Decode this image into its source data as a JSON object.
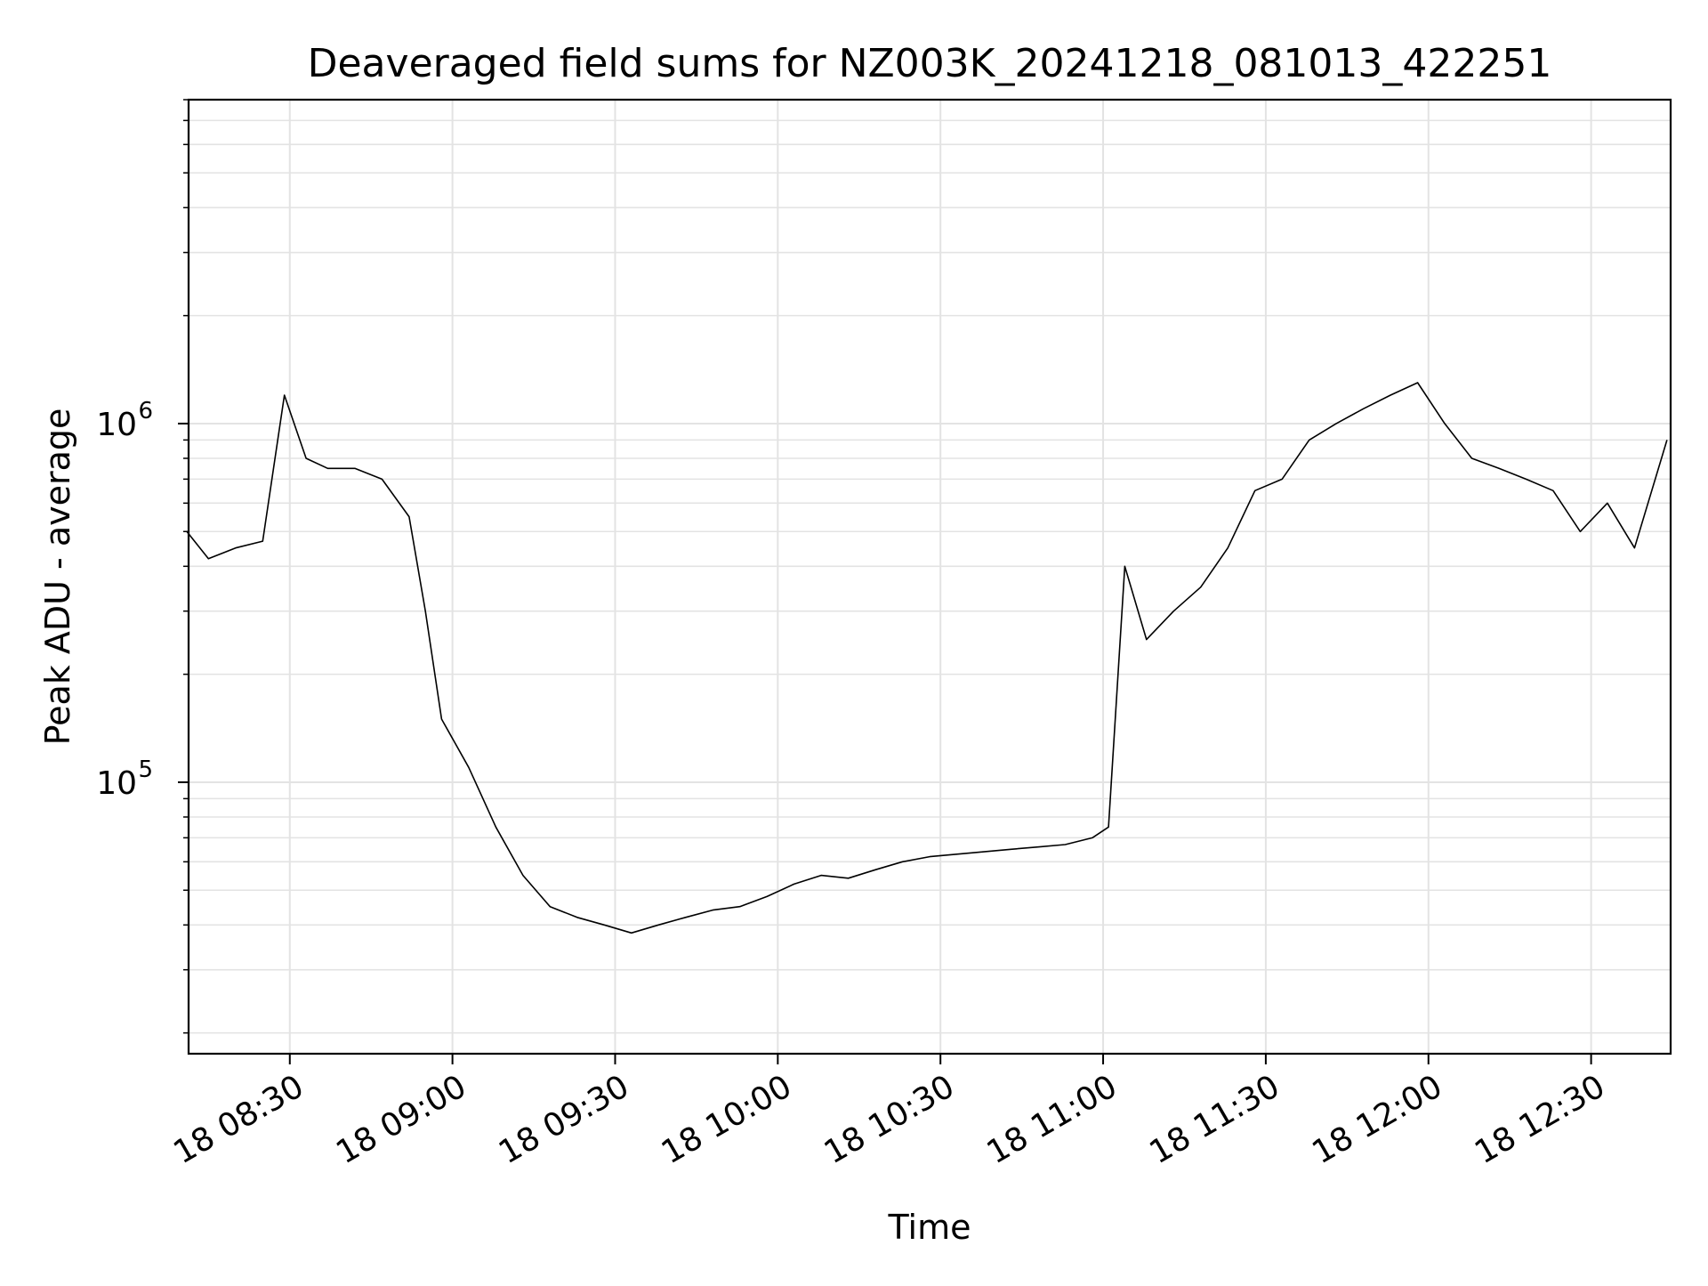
{
  "chart_data": {
    "type": "line",
    "title": "Deaveraged field sums for NZ003K_20241218_081013_422251",
    "xlabel": "Time",
    "ylabel": "Peak ADU - average",
    "yscale": "log",
    "ylim": [
      17500,
      8000000
    ],
    "xlim": [
      "18 08:11:20",
      "18 12:44:40"
    ],
    "grid": true,
    "line_color": "#000000",
    "x_ticks": [
      "18 08:30",
      "18 09:00",
      "18 09:30",
      "18 10:00",
      "18 10:30",
      "18 11:00",
      "18 11:30",
      "18 12:00",
      "18 12:30"
    ],
    "y_ticks": [
      {
        "base": "10",
        "exp": "5",
        "value": 100000
      },
      {
        "base": "10",
        "exp": "6",
        "value": 1000000
      }
    ],
    "series": [
      {
        "x": [
          "08:11",
          "08:15",
          "08:20",
          "08:25",
          "08:29",
          "08:33",
          "08:37",
          "08:42",
          "08:47",
          "08:52",
          "08:55",
          "08:58",
          "09:03",
          "09:08",
          "09:13",
          "09:18",
          "09:23",
          "09:28",
          "09:33",
          "09:38",
          "09:43",
          "09:48",
          "09:53",
          "09:58",
          "10:03",
          "10:08",
          "10:13",
          "10:18",
          "10:23",
          "10:28",
          "10:33",
          "10:38",
          "10:43",
          "10:48",
          "10:53",
          "10:58",
          "11:01",
          "11:04",
          "11:08",
          "11:13",
          "11:18",
          "11:23",
          "11:28",
          "11:33",
          "11:38",
          "11:43",
          "11:48",
          "11:53",
          "11:58",
          "12:03",
          "12:08",
          "12:13",
          "12:18",
          "12:23",
          "12:28",
          "12:33",
          "12:38",
          "12:44"
        ],
        "values": [
          500000,
          420000,
          450000,
          470000,
          1200000,
          800000,
          750000,
          750000,
          700000,
          550000,
          300000,
          150000,
          110000,
          75000,
          55000,
          45000,
          42000,
          40000,
          38000,
          40000,
          42000,
          44000,
          45000,
          48000,
          52000,
          55000,
          54000,
          57000,
          60000,
          62000,
          63000,
          64000,
          65000,
          66000,
          67000,
          70000,
          75000,
          400000,
          250000,
          300000,
          350000,
          450000,
          650000,
          700000,
          900000,
          1000000,
          1100000,
          1200000,
          1300000,
          1000000,
          800000,
          750000,
          700000,
          650000,
          500000,
          600000,
          450000,
          900000
        ]
      }
    ]
  }
}
